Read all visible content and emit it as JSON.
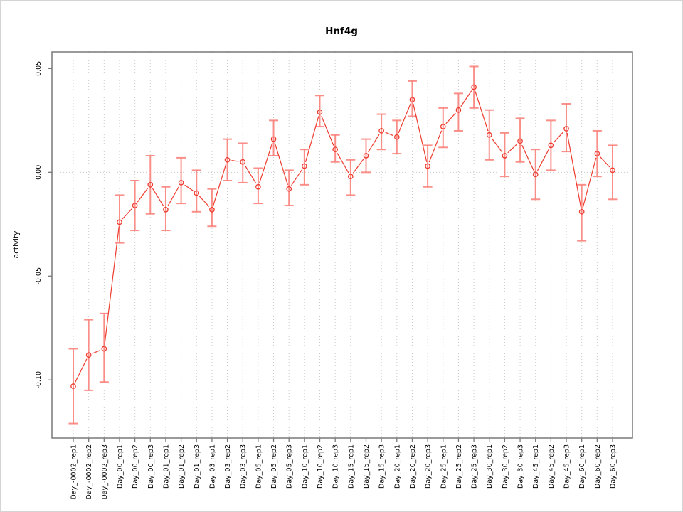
{
  "chart_data": {
    "type": "line",
    "title": "Hnf4g",
    "xlabel": "",
    "ylabel": "activity",
    "ylim": [
      -0.128,
      0.058
    ],
    "grid": "dotted vertical gridline per category, dotted horizontal line at 0",
    "legend": "none",
    "marker": "open-circle",
    "yticks": [
      {
        "value": 0.05,
        "label": "0.05"
      },
      {
        "value": 0.0,
        "label": "0.00"
      },
      {
        "value": -0.05,
        "label": "-0.05"
      },
      {
        "value": -0.1,
        "label": "-0.10"
      }
    ],
    "categories": [
      "Day_-0002_rep1",
      "Day_-0002_rep2",
      "Day_-0002_rep3",
      "Day_00_rep1",
      "Day_00_rep2",
      "Day_00_rep3",
      "Day_01_rep1",
      "Day_01_rep2",
      "Day_01_rep3",
      "Day_03_rep1",
      "Day_03_rep2",
      "Day_03_rep3",
      "Day_05_rep1",
      "Day_05_rep2",
      "Day_05_rep3",
      "Day_10_rep1",
      "Day_10_rep2",
      "Day_10_rep3",
      "Day_15_rep1",
      "Day_15_rep2",
      "Day_15_rep3",
      "Day_20_rep1",
      "Day_20_rep2",
      "Day_20_rep3",
      "Day_25_rep1",
      "Day_25_rep2",
      "Day_25_rep3",
      "Day_30_rep1",
      "Day_30_rep2",
      "Day_30_rep3",
      "Day_45_rep1",
      "Day_45_rep2",
      "Day_45_rep3",
      "Day_60_rep1",
      "Day_60_rep2",
      "Day_60_rep3"
    ],
    "values": [
      -0.103,
      -0.088,
      -0.085,
      -0.024,
      -0.016,
      -0.006,
      -0.018,
      -0.005,
      -0.01,
      -0.018,
      0.006,
      0.005,
      -0.007,
      0.016,
      -0.008,
      0.003,
      0.029,
      0.011,
      -0.002,
      0.008,
      0.02,
      0.017,
      0.035,
      0.003,
      0.022,
      0.03,
      0.041,
      0.018,
      0.008,
      0.015,
      -0.001,
      0.013,
      0.021,
      -0.019,
      0.009,
      0.001
    ],
    "err_low": [
      -0.121,
      -0.105,
      -0.101,
      -0.034,
      -0.028,
      -0.02,
      -0.028,
      -0.015,
      -0.019,
      -0.026,
      -0.004,
      -0.005,
      -0.015,
      0.008,
      -0.016,
      -0.006,
      0.022,
      0.005,
      -0.011,
      0.0,
      0.011,
      0.009,
      0.027,
      -0.007,
      0.012,
      0.02,
      0.031,
      0.006,
      -0.002,
      0.005,
      -0.013,
      0.001,
      0.01,
      -0.033,
      -0.002,
      -0.013
    ],
    "err_high": [
      -0.085,
      -0.071,
      -0.068,
      -0.011,
      -0.004,
      0.008,
      -0.007,
      0.007,
      0.001,
      -0.008,
      0.016,
      0.014,
      0.002,
      0.025,
      0.001,
      0.011,
      0.037,
      0.018,
      0.006,
      0.016,
      0.028,
      0.025,
      0.044,
      0.013,
      0.031,
      0.038,
      0.051,
      0.03,
      0.019,
      0.026,
      0.011,
      0.025,
      0.033,
      -0.006,
      0.02,
      0.013
    ],
    "colors": {
      "series": "#ee3b2e",
      "error_bar": "#fa7d76",
      "gridline": "#c9c9c9",
      "box": "#787878",
      "text": "#000000",
      "background": "#ffffff"
    }
  }
}
